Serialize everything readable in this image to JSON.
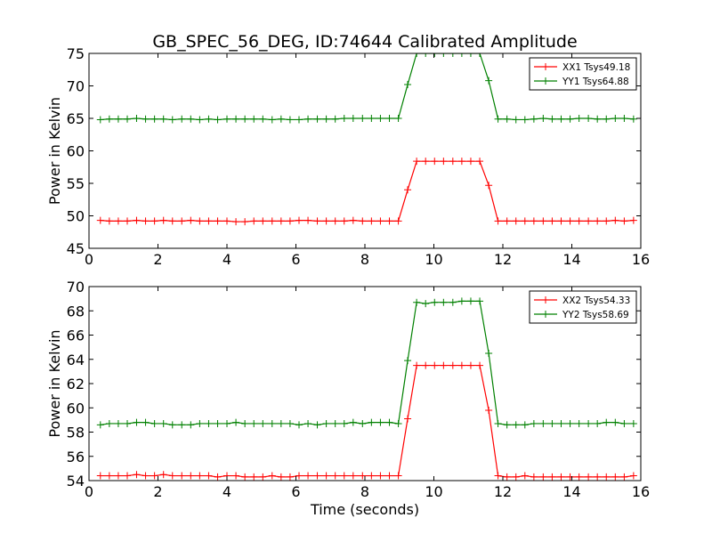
{
  "chart_data": [
    {
      "type": "line",
      "title": "GB_SPEC_56_DEG, ID:74644 Calibrated Amplitude",
      "xlabel": "",
      "ylabel": "Power in Kelvin",
      "xlim": [
        0,
        16
      ],
      "ylim": [
        45,
        75
      ],
      "xticks": [
        0,
        2,
        4,
        6,
        8,
        10,
        12,
        14,
        16
      ],
      "yticks": [
        45,
        50,
        55,
        60,
        65,
        70,
        75
      ],
      "legend_position": "top-right",
      "grid": false,
      "x": [
        0.33,
        0.59,
        0.85,
        1.11,
        1.38,
        1.64,
        1.9,
        2.16,
        2.42,
        2.69,
        2.95,
        3.21,
        3.47,
        3.73,
        4.0,
        4.26,
        4.52,
        4.78,
        5.04,
        5.31,
        5.57,
        5.83,
        6.09,
        6.35,
        6.62,
        6.88,
        7.14,
        7.4,
        7.66,
        7.93,
        8.19,
        8.45,
        8.71,
        8.97,
        9.24,
        9.5,
        9.76,
        10.02,
        10.28,
        10.55,
        10.81,
        11.07,
        11.33,
        11.59,
        11.86,
        12.12,
        12.38,
        12.64,
        12.9,
        13.17,
        13.43,
        13.69,
        13.95,
        14.21,
        14.48,
        14.74,
        15.0,
        15.26,
        15.52,
        15.79
      ],
      "series": [
        {
          "name": "XX1 Tsys49.18",
          "color": "#ff0000",
          "values": [
            49.3,
            49.2,
            49.2,
            49.2,
            49.3,
            49.2,
            49.2,
            49.3,
            49.2,
            49.2,
            49.3,
            49.2,
            49.2,
            49.2,
            49.2,
            49.1,
            49.1,
            49.2,
            49.2,
            49.2,
            49.2,
            49.2,
            49.3,
            49.3,
            49.2,
            49.2,
            49.2,
            49.2,
            49.3,
            49.2,
            49.2,
            49.2,
            49.2,
            49.2,
            54.0,
            58.4,
            58.4,
            58.4,
            58.4,
            58.4,
            58.4,
            58.4,
            58.4,
            54.7,
            49.2,
            49.2,
            49.2,
            49.2,
            49.2,
            49.2,
            49.2,
            49.2,
            49.2,
            49.2,
            49.2,
            49.2,
            49.2,
            49.3,
            49.2,
            49.3
          ]
        },
        {
          "name": "YY1 Tsys64.88",
          "color": "#008000",
          "values": [
            64.8,
            64.9,
            64.9,
            64.9,
            65.0,
            64.9,
            64.9,
            64.9,
            64.8,
            64.9,
            64.9,
            64.8,
            64.9,
            64.8,
            64.9,
            64.9,
            64.9,
            64.9,
            64.9,
            64.8,
            64.9,
            64.8,
            64.8,
            64.9,
            64.9,
            64.9,
            64.9,
            65.0,
            65.0,
            65.0,
            65.0,
            65.0,
            65.0,
            65.0,
            70.2,
            75.0,
            75.0,
            75.0,
            75.0,
            75.0,
            75.0,
            75.0,
            75.0,
            70.8,
            64.9,
            64.9,
            64.8,
            64.8,
            64.9,
            65.0,
            64.9,
            64.9,
            64.9,
            65.0,
            65.0,
            64.9,
            64.9,
            65.0,
            65.0,
            64.9
          ]
        }
      ]
    },
    {
      "type": "line",
      "title": "",
      "xlabel": "Time (seconds)",
      "ylabel": "Power in Kelvin",
      "xlim": [
        0,
        16
      ],
      "ylim": [
        54,
        70
      ],
      "xticks": [
        0,
        2,
        4,
        6,
        8,
        10,
        12,
        14,
        16
      ],
      "yticks": [
        54,
        56,
        58,
        60,
        62,
        64,
        66,
        68,
        70
      ],
      "legend_position": "top-right",
      "grid": false,
      "x": [
        0.33,
        0.59,
        0.85,
        1.11,
        1.38,
        1.64,
        1.9,
        2.16,
        2.42,
        2.69,
        2.95,
        3.21,
        3.47,
        3.73,
        4.0,
        4.26,
        4.52,
        4.78,
        5.04,
        5.31,
        5.57,
        5.83,
        6.09,
        6.35,
        6.62,
        6.88,
        7.14,
        7.4,
        7.66,
        7.93,
        8.19,
        8.45,
        8.71,
        8.97,
        9.24,
        9.5,
        9.76,
        10.02,
        10.28,
        10.55,
        10.81,
        11.07,
        11.33,
        11.59,
        11.86,
        12.12,
        12.38,
        12.64,
        12.9,
        13.17,
        13.43,
        13.69,
        13.95,
        14.21,
        14.48,
        14.74,
        15.0,
        15.26,
        15.52,
        15.79
      ],
      "series": [
        {
          "name": "XX2 Tsys54.33",
          "color": "#ff0000",
          "values": [
            54.4,
            54.4,
            54.4,
            54.4,
            54.5,
            54.4,
            54.4,
            54.5,
            54.4,
            54.4,
            54.4,
            54.4,
            54.4,
            54.3,
            54.4,
            54.4,
            54.3,
            54.3,
            54.3,
            54.4,
            54.3,
            54.3,
            54.4,
            54.4,
            54.4,
            54.4,
            54.4,
            54.4,
            54.4,
            54.4,
            54.4,
            54.4,
            54.4,
            54.4,
            59.1,
            63.5,
            63.5,
            63.5,
            63.5,
            63.5,
            63.5,
            63.5,
            63.5,
            59.8,
            54.4,
            54.3,
            54.3,
            54.4,
            54.3,
            54.3,
            54.3,
            54.3,
            54.3,
            54.3,
            54.3,
            54.3,
            54.3,
            54.3,
            54.3,
            54.4
          ]
        },
        {
          "name": "YY2 Tsys58.69",
          "color": "#008000",
          "values": [
            58.6,
            58.7,
            58.7,
            58.7,
            58.8,
            58.8,
            58.7,
            58.7,
            58.6,
            58.6,
            58.6,
            58.7,
            58.7,
            58.7,
            58.7,
            58.8,
            58.7,
            58.7,
            58.7,
            58.7,
            58.7,
            58.7,
            58.6,
            58.7,
            58.6,
            58.7,
            58.7,
            58.7,
            58.8,
            58.7,
            58.8,
            58.8,
            58.8,
            58.7,
            63.9,
            68.7,
            68.6,
            68.7,
            68.7,
            68.7,
            68.8,
            68.8,
            68.8,
            64.5,
            58.7,
            58.6,
            58.6,
            58.6,
            58.7,
            58.7,
            58.7,
            58.7,
            58.7,
            58.7,
            58.7,
            58.7,
            58.8,
            58.8,
            58.7,
            58.7
          ]
        }
      ]
    }
  ]
}
